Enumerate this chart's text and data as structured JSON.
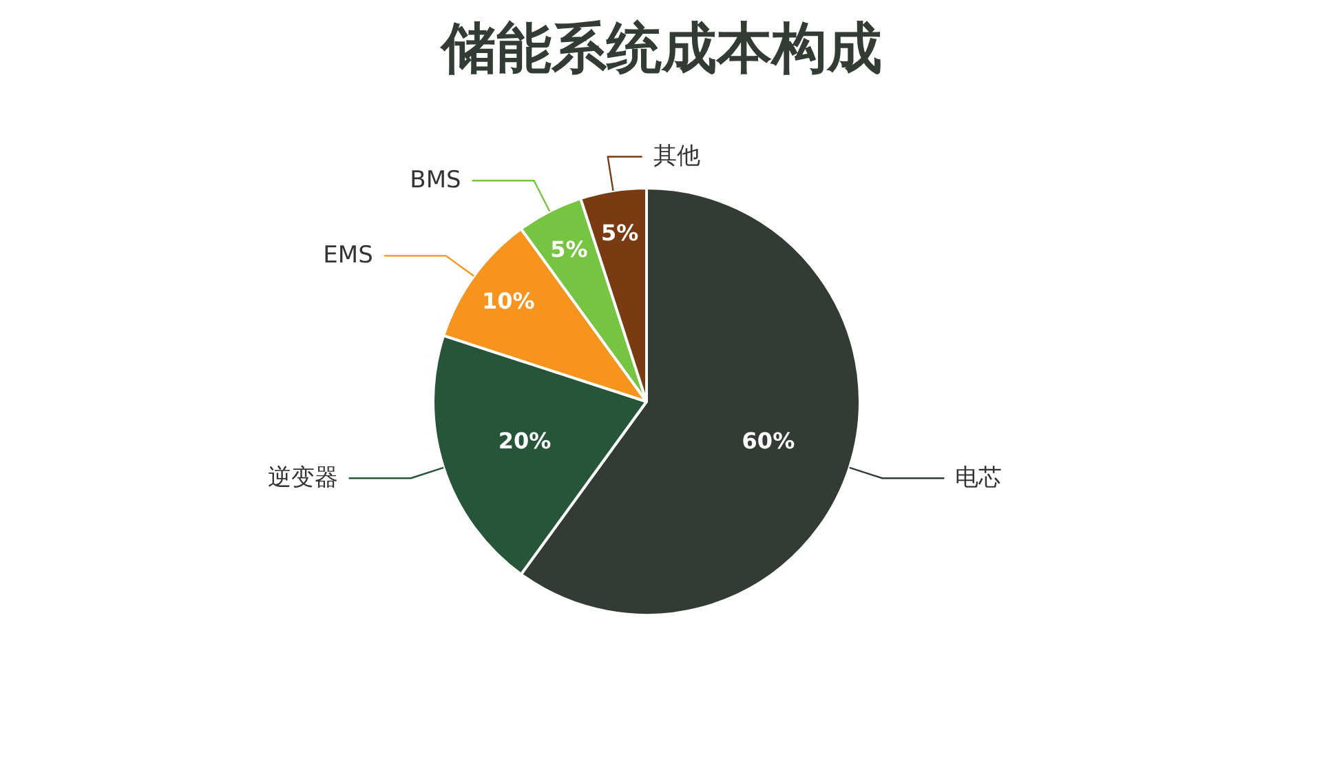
{
  "chart_data": {
    "type": "pie",
    "title": "储能系统成本构成",
    "categories": [
      "电芯",
      "逆变器",
      "EMS",
      "BMS",
      "其他"
    ],
    "values": [
      60,
      20,
      10,
      5,
      5
    ],
    "value_labels": [
      "60%",
      "20%",
      "10%",
      "5%",
      "5%"
    ],
    "colors": [
      "#333b35",
      "#27553a",
      "#f7941d",
      "#76c442",
      "#7a3b12"
    ]
  }
}
